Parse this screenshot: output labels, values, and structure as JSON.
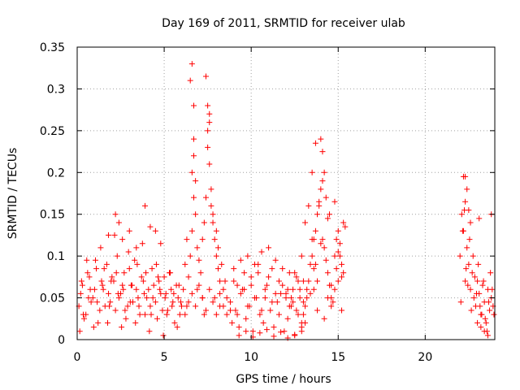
{
  "chart_data": {
    "type": "scatter",
    "title": "Day 169 of 2011, SRMTID for receiver ulab",
    "xlabel": "GPS time / hours",
    "ylabel": "SRMTID / TECUs",
    "xlim": [
      0,
      24
    ],
    "ylim": [
      0,
      0.35
    ],
    "xticks": [
      0,
      5,
      10,
      15,
      20
    ],
    "xtick_labels": [
      "0",
      "5",
      "10",
      "15",
      "20"
    ],
    "yticks": [
      0,
      0.05,
      0.1,
      0.15,
      0.2,
      0.25,
      0.3,
      0.35
    ],
    "ytick_labels": [
      "0",
      "0.05",
      "0.1",
      "0.15",
      "0.2",
      "0.25",
      "0.3",
      "0.35"
    ],
    "grid": true,
    "marker": "plus",
    "color": "#ff0000",
    "series": [
      {
        "name": "SRMTID",
        "x": [
          0.1,
          0.3,
          0.5,
          0.7,
          0.9,
          1.1,
          1.3,
          1.5,
          1.7,
          1.9,
          2.1,
          2.3,
          2.5,
          2.7,
          2.9,
          3.1,
          3.3,
          3.5,
          3.7,
          3.9,
          4.1,
          4.3,
          4.5,
          4.7,
          4.9,
          5.1,
          5.3,
          5.5,
          5.7,
          5.9,
          0.2,
          0.4,
          0.6,
          0.8,
          1.0,
          1.2,
          1.4,
          1.6,
          1.8,
          2.0,
          2.2,
          2.4,
          2.6,
          2.8,
          3.0,
          3.2,
          3.4,
          3.6,
          3.8,
          4.0,
          4.2,
          4.4,
          4.6,
          4.8,
          5.0,
          5.2,
          5.4,
          5.6,
          5.8,
          6.0,
          0.15,
          0.55,
          0.95,
          1.35,
          1.75,
          2.15,
          2.55,
          2.95,
          3.35,
          3.75,
          4.15,
          4.55,
          4.95,
          5.35,
          5.75,
          0.25,
          0.65,
          1.05,
          1.45,
          1.85,
          2.25,
          2.65,
          3.05,
          3.45,
          3.85,
          4.25,
          4.65,
          5.05,
          5.45,
          5.85,
          0.35,
          0.75,
          1.15,
          1.55,
          1.95,
          2.35,
          2.75,
          3.15,
          3.55,
          3.95,
          4.35,
          4.75,
          5.15,
          5.55,
          5.95,
          2.2,
          2.4,
          3.0,
          3.9,
          4.2,
          4.5,
          4.8,
          1.8,
          2.6,
          3.4,
          6.1,
          6.2,
          6.3,
          6.4,
          6.5,
          6.6,
          6.6,
          6.7,
          6.7,
          6.8,
          6.9,
          7.0,
          7.1,
          7.2,
          7.3,
          7.4,
          7.5,
          7.5,
          7.6,
          7.6,
          7.7,
          7.8,
          7.9,
          8.0,
          8.1,
          8.2,
          8.3,
          8.4,
          6.5,
          6.6,
          6.7,
          6.7,
          6.8,
          7.4,
          7.5,
          7.6,
          7.7,
          7.8,
          8.0,
          8.1,
          6.3,
          6.9,
          7.2,
          7.3,
          7.9,
          8.2,
          8.5,
          8.6,
          6.2,
          6.4,
          6.6,
          6.8,
          7.0,
          7.2,
          7.4,
          7.6,
          7.8,
          8.0,
          8.2,
          8.4,
          8.6,
          8.8,
          8.8,
          9.0,
          9.2,
          9.4,
          9.6,
          9.8,
          10.0,
          10.2,
          10.4,
          10.6,
          10.8,
          11.0,
          11.2,
          11.4,
          11.6,
          11.8,
          12.0,
          12.2,
          12.4,
          12.6,
          12.8,
          13.0,
          8.9,
          9.1,
          9.3,
          9.5,
          9.7,
          9.9,
          10.1,
          10.3,
          10.5,
          10.7,
          10.9,
          11.1,
          11.3,
          11.5,
          11.7,
          11.9,
          12.1,
          12.3,
          12.5,
          12.7,
          12.9,
          13.1,
          9.0,
          9.4,
          9.8,
          10.2,
          10.6,
          11.0,
          11.4,
          11.8,
          12.2,
          12.6,
          13.0,
          9.2,
          9.6,
          10.0,
          10.4,
          10.8,
          11.2,
          11.6,
          12.0,
          12.4,
          12.8,
          9.3,
          9.7,
          10.1,
          10.5,
          10.9,
          11.3,
          11.7,
          12.1,
          12.5,
          12.9,
          12.1,
          12.3,
          12.5,
          12.7,
          12.9,
          13.1,
          13.3,
          13.5,
          13.7,
          13.0,
          13.2,
          13.4,
          13.6,
          13.8,
          14.0,
          14.2,
          14.4,
          14.6,
          14.8,
          15.0,
          15.2,
          13.1,
          13.3,
          13.5,
          13.7,
          13.9,
          14.1,
          14.3,
          14.5,
          14.7,
          14.9,
          15.1,
          15.3,
          13.2,
          13.6,
          14.0,
          14.4,
          14.8,
          15.2,
          13.4,
          13.8,
          14.2,
          14.6,
          15.0,
          15.4,
          12.9,
          13.5,
          13.9,
          14.1,
          14.3,
          13.7,
          14.5,
          14.9,
          15.1,
          15.3,
          14.0,
          14.1,
          14.2,
          13.6,
          13.8,
          14.4,
          14.6,
          14.8,
          15.0,
          15.2,
          22.0,
          22.1,
          22.2,
          22.3,
          22.4,
          22.5,
          22.6,
          22.7,
          22.8,
          22.9,
          23.0,
          23.1,
          23.2,
          23.3,
          23.4,
          23.5,
          23.6,
          23.7,
          23.8,
          23.9,
          22.05,
          22.15,
          22.25,
          22.35,
          22.45,
          22.55,
          22.65,
          22.75,
          22.85,
          22.95,
          23.05,
          23.15,
          23.25,
          23.35,
          23.45,
          23.55,
          23.65,
          23.75,
          23.85,
          23.95,
          22.2,
          22.3,
          22.4,
          22.3,
          22.5,
          22.6,
          23.0,
          23.2,
          23.4,
          23.6,
          23.8,
          23.1
        ],
        "y": [
          0.04,
          0.065,
          0.03,
          0.075,
          0.05,
          0.085,
          0.035,
          0.06,
          0.09,
          0.045,
          0.07,
          0.1,
          0.055,
          0.08,
          0.04,
          0.065,
          0.095,
          0.05,
          0.075,
          0.03,
          0.06,
          0.085,
          0.045,
          0.07,
          0.035,
          0.055,
          0.08,
          0.045,
          0.065,
          0.03,
          0.055,
          0.025,
          0.08,
          0.045,
          0.06,
          0.02,
          0.07,
          0.04,
          0.055,
          0.075,
          0.035,
          0.05,
          0.065,
          0.025,
          0.085,
          0.045,
          0.06,
          0.03,
          0.07,
          0.05,
          0.04,
          0.065,
          0.025,
          0.055,
          0.075,
          0.035,
          0.06,
          0.02,
          0.05,
          0.04,
          0.01,
          0.095,
          0.015,
          0.11,
          0.02,
          0.125,
          0.015,
          0.105,
          0.02,
          0.115,
          0.01,
          0.09,
          0.005,
          0.08,
          0.015,
          0.07,
          0.05,
          0.095,
          0.065,
          0.04,
          0.08,
          0.06,
          0.045,
          0.09,
          0.055,
          0.03,
          0.075,
          0.05,
          0.04,
          0.065,
          0.03,
          0.06,
          0.045,
          0.085,
          0.07,
          0.055,
          0.035,
          0.065,
          0.04,
          0.08,
          0.05,
          0.06,
          0.03,
          0.055,
          0.045,
          0.15,
          0.14,
          0.13,
          0.16,
          0.135,
          0.13,
          0.115,
          0.125,
          0.12,
          0.11,
          0.06,
          0.09,
          0.12,
          0.075,
          0.1,
          0.13,
          0.2,
          0.17,
          0.24,
          0.15,
          0.11,
          0.095,
          0.08,
          0.12,
          0.14,
          0.17,
          0.28,
          0.23,
          0.26,
          0.21,
          0.18,
          0.15,
          0.12,
          0.1,
          0.085,
          0.07,
          0.09,
          0.06,
          0.31,
          0.33,
          0.28,
          0.22,
          0.19,
          0.315,
          0.25,
          0.27,
          0.16,
          0.14,
          0.13,
          0.11,
          0.04,
          0.06,
          0.05,
          0.03,
          0.05,
          0.04,
          0.07,
          0.03,
          0.03,
          0.045,
          0.055,
          0.04,
          0.065,
          0.05,
          0.035,
          0.06,
          0.045,
          0.03,
          0.055,
          0.04,
          0.05,
          0.035,
          0.045,
          0.07,
          0.03,
          0.055,
          0.08,
          0.04,
          0.065,
          0.05,
          0.09,
          0.035,
          0.06,
          0.075,
          0.045,
          0.055,
          0.03,
          0.065,
          0.05,
          0.04,
          0.06,
          0.035,
          0.05,
          0.045,
          0.02,
          0.035,
          0.015,
          0.06,
          0.025,
          0.04,
          0.01,
          0.05,
          0.03,
          0.02,
          0.065,
          0.035,
          0.015,
          0.045,
          0.055,
          0.01,
          0.025,
          0.04,
          0.005,
          0.03,
          0.015,
          0.02,
          0.085,
          0.095,
          0.1,
          0.09,
          0.105,
          0.11,
          0.095,
          0.085,
          0.08,
          0.075,
          0.07,
          0.065,
          0.06,
          0.075,
          0.08,
          0.05,
          0.085,
          0.07,
          0.055,
          0.045,
          0.06,
          0.005,
          0.01,
          0.003,
          0.008,
          0.012,
          0.004,
          0.009,
          0.002,
          0.006,
          0.01,
          0.06,
          0.05,
          0.08,
          0.07,
          0.1,
          0.14,
          0.16,
          0.12,
          0.09,
          0.03,
          0.06,
          0.09,
          0.12,
          0.15,
          0.18,
          0.11,
          0.08,
          0.05,
          0.1,
          0.13,
          0.09,
          0.04,
          0.07,
          0.1,
          0.13,
          0.16,
          0.12,
          0.095,
          0.065,
          0.045,
          0.085,
          0.115,
          0.14,
          0.05,
          0.085,
          0.115,
          0.145,
          0.165,
          0.075,
          0.055,
          0.035,
          0.025,
          0.065,
          0.105,
          0.135,
          0.02,
          0.2,
          0.165,
          0.19,
          0.17,
          0.235,
          0.15,
          0.12,
          0.1,
          0.08,
          0.24,
          0.225,
          0.2,
          0.06,
          0.07,
          0.05,
          0.04,
          0.06,
          0.07,
          0.035,
          0.1,
          0.15,
          0.13,
          0.07,
          0.11,
          0.09,
          0.06,
          0.08,
          0.05,
          0.04,
          0.07,
          0.055,
          0.03,
          0.065,
          0.045,
          0.02,
          0.06,
          0.035,
          0.05,
          0.04,
          0.045,
          0.13,
          0.155,
          0.085,
          0.065,
          0.12,
          0.035,
          0.1,
          0.075,
          0.055,
          0.09,
          0.04,
          0.03,
          0.07,
          0.025,
          0.01,
          0.045,
          0.08,
          0.06,
          0.03,
          0.195,
          0.195,
          0.18,
          0.165,
          0.155,
          0.14,
          0.02,
          0.015,
          0.01,
          0.005,
          0.15,
          0.145
        ]
      }
    ]
  }
}
